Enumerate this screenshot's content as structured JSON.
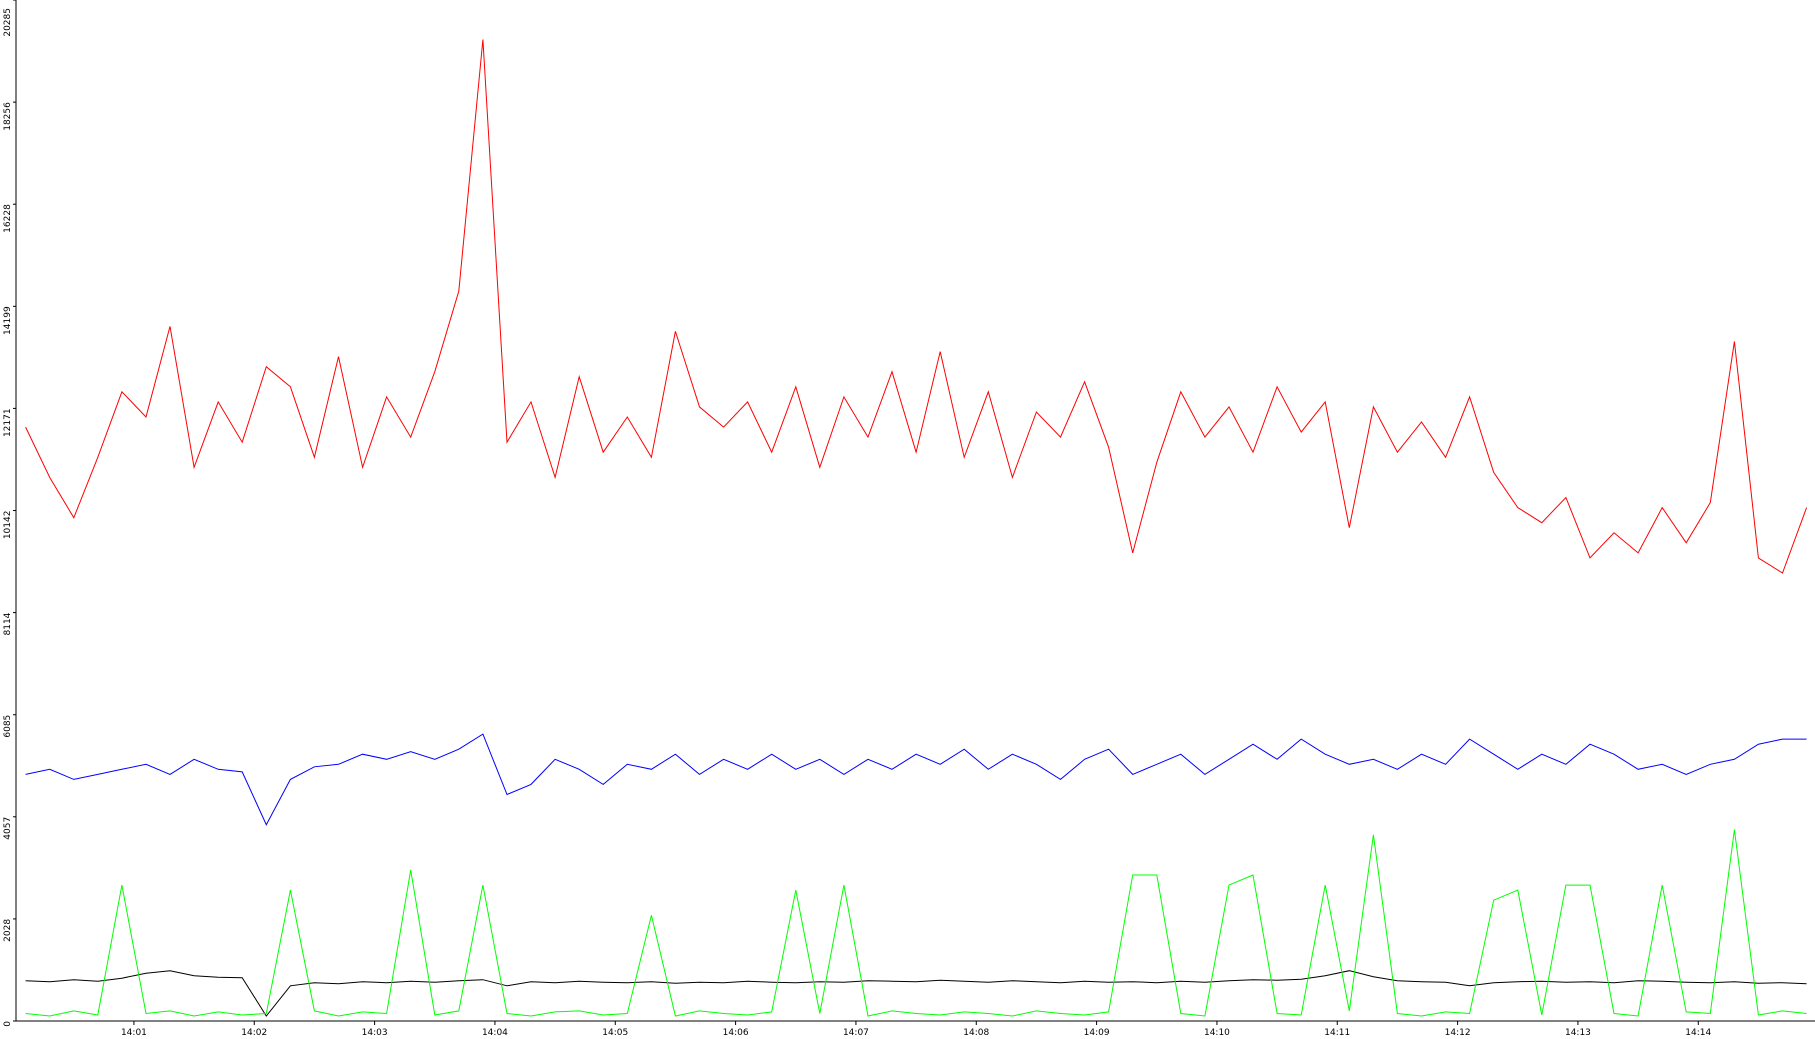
{
  "chart_data": {
    "type": "line",
    "x": [
      0.1,
      0.3,
      0.5,
      0.7,
      0.9,
      1.1,
      1.3,
      1.5,
      1.7,
      1.9,
      2.1,
      2.3,
      2.5,
      2.7,
      2.9,
      3.1,
      3.3,
      3.5,
      3.7,
      3.9,
      4.1,
      4.3,
      4.5,
      4.7,
      4.9,
      5.1,
      5.3,
      5.5,
      5.7,
      5.9,
      6.1,
      6.3,
      6.5,
      6.7,
      6.9,
      7.1,
      7.3,
      7.5,
      7.7,
      7.9,
      8.1,
      8.3,
      8.5,
      8.7,
      8.9,
      9.1,
      9.3,
      9.5,
      9.7,
      9.9,
      10.1,
      10.3,
      10.5,
      10.7,
      10.9,
      11.1,
      11.3,
      11.5,
      11.7,
      11.9,
      12.1,
      12.3,
      12.5,
      12.7,
      12.9,
      13.1,
      13.3,
      13.5,
      13.7,
      13.9,
      14.1,
      14.3,
      14.5,
      14.7,
      14.9
    ],
    "series": [
      {
        "color": "#ff0000",
        "values": [
          11800,
          10800,
          10000,
          11200,
          12500,
          12000,
          13800,
          11000,
          12300,
          11500,
          13000,
          12600,
          11200,
          13200,
          11000,
          12400,
          11600,
          12900,
          14500,
          19500,
          11500,
          12300,
          10800,
          12800,
          11300,
          12000,
          11200,
          13700,
          12200,
          11800,
          12300,
          11300,
          12600,
          11000,
          12400,
          11600,
          12900,
          11300,
          13300,
          11200,
          12500,
          10800,
          12100,
          11600,
          12700,
          11400,
          9300,
          11100,
          12500,
          11600,
          12200,
          11300,
          12600,
          11700,
          12300,
          9800,
          12200,
          11300,
          11900,
          11200,
          12400,
          10900,
          10200,
          9900,
          10400,
          9200,
          9700,
          9300,
          10200,
          9500,
          10300,
          13500,
          9200,
          8900,
          10200
        ]
      },
      {
        "color": "#0000ff",
        "values": [
          4900,
          5000,
          4800,
          4900,
          5000,
          5100,
          4900,
          5200,
          5000,
          4950,
          3900,
          4800,
          5050,
          5100,
          5300,
          5200,
          5350,
          5200,
          5400,
          5700,
          4500,
          4700,
          5200,
          5000,
          4700,
          5100,
          5000,
          5300,
          4900,
          5200,
          5000,
          5300,
          5000,
          5200,
          4900,
          5200,
          5000,
          5300,
          5100,
          5400,
          5000,
          5300,
          5100,
          4800,
          5200,
          5400,
          4900,
          5100,
          5300,
          4900,
          5200,
          5500,
          5200,
          5600,
          5300,
          5100,
          5200,
          5000,
          5300,
          5100,
          5600,
          5300,
          5000,
          5300,
          5100,
          5500,
          5300,
          5000,
          5100,
          4900,
          5100,
          5200,
          5500,
          5600,
          5600
        ]
      },
      {
        "color": "#000000",
        "values": [
          800,
          780,
          820,
          790,
          850,
          950,
          1000,
          900,
          870,
          860,
          100,
          700,
          760,
          740,
          780,
          760,
          790,
          770,
          800,
          820,
          700,
          780,
          760,
          790,
          770,
          760,
          780,
          750,
          770,
          760,
          790,
          770,
          760,
          780,
          770,
          800,
          790,
          780,
          810,
          790,
          770,
          800,
          780,
          760,
          790,
          770,
          780,
          760,
          790,
          770,
          800,
          820,
          810,
          830,
          900,
          1000,
          880,
          800,
          780,
          770,
          700,
          760,
          780,
          790,
          770,
          780,
          760,
          800,
          790,
          770,
          760,
          780,
          750,
          760,
          740
        ]
      },
      {
        "color": "#00ff00",
        "values": [
          150,
          100,
          200,
          120,
          2700,
          150,
          200,
          100,
          180,
          120,
          150,
          2600,
          200,
          100,
          180,
          150,
          3000,
          120,
          200,
          2700,
          150,
          100,
          180,
          200,
          120,
          150,
          2100,
          100,
          200,
          150,
          120,
          180,
          2600,
          150,
          2700,
          100,
          200,
          150,
          120,
          180,
          150,
          100,
          200,
          150,
          120,
          180,
          2900,
          2900,
          150,
          100,
          2700,
          2900,
          150,
          120,
          2700,
          200,
          3700,
          150,
          100,
          180,
          150,
          2400,
          2600,
          120,
          2700,
          2700,
          150,
          100,
          2700,
          180,
          150,
          3800,
          120,
          200,
          150
        ]
      }
    ],
    "xlim": [
      0.02,
      14.97
    ],
    "xticks": [
      {
        "value": 1,
        "label": "14:01"
      },
      {
        "value": 2,
        "label": "14:02"
      },
      {
        "value": 3,
        "label": "14:03"
      },
      {
        "value": 4,
        "label": "14:04"
      },
      {
        "value": 5,
        "label": "14:05"
      },
      {
        "value": 6,
        "label": "14:06"
      },
      {
        "value": 7,
        "label": "14:07"
      },
      {
        "value": 8,
        "label": "14:08"
      },
      {
        "value": 9,
        "label": "14:09"
      },
      {
        "value": 10,
        "label": "14:10"
      },
      {
        "value": 11,
        "label": "14:11"
      },
      {
        "value": 12,
        "label": "14:12"
      },
      {
        "value": 13,
        "label": "14:13"
      },
      {
        "value": 14,
        "label": "14:14"
      }
    ],
    "ylim": [
      0,
      20285
    ],
    "yticks": [
      0,
      2028,
      4057,
      6085,
      8114,
      10142,
      12171,
      14199,
      16228,
      18256,
      20285
    ]
  }
}
